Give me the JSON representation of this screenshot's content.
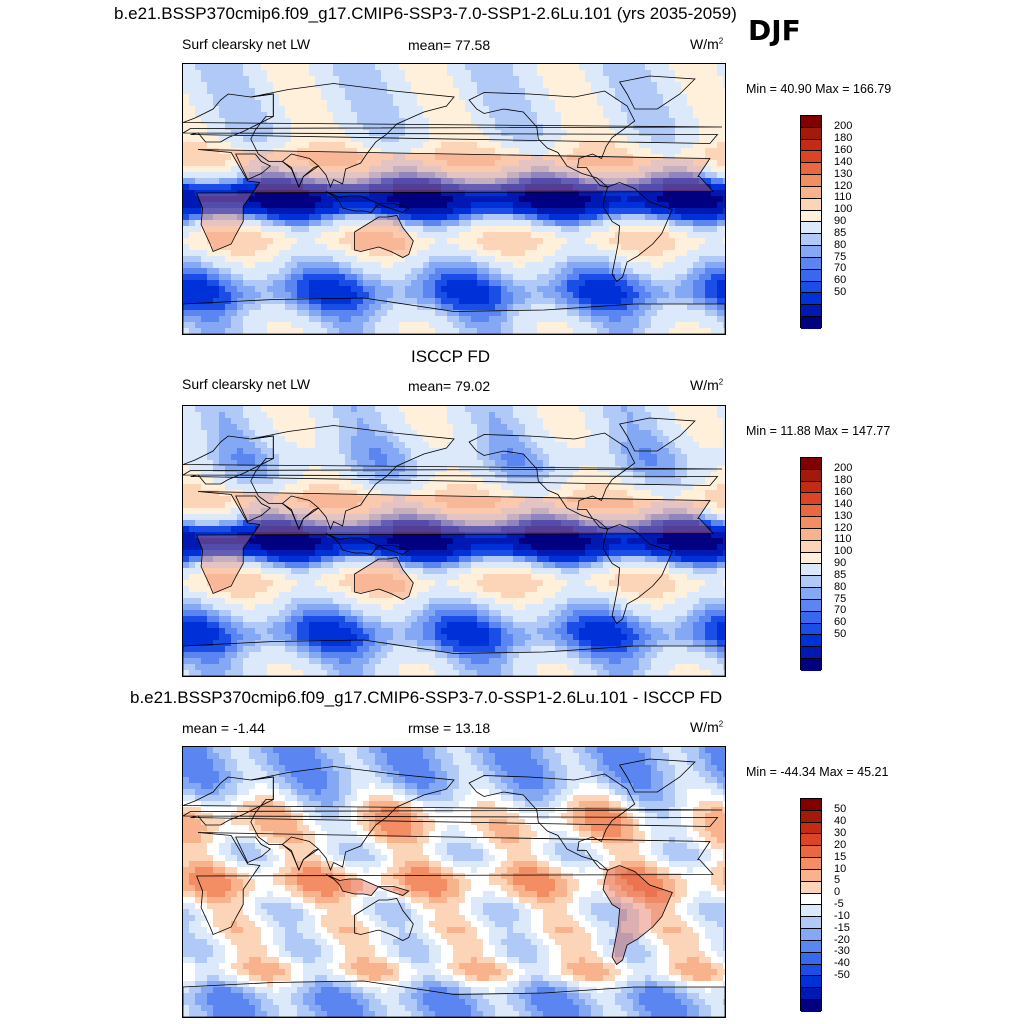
{
  "season": "DJF",
  "panels": [
    {
      "title": "b.e21.BSSP370cmip6.f09_g17.CMIP6-SSP3-7.0-SSP1-2.6Lu.101 (yrs 2035-2059)",
      "left_label": "Surf clearsky net LW",
      "center_label": "mean=  77.58",
      "units": "W/m",
      "units_sup": "2",
      "minmax": "Min =  40.90 Max = 166.79",
      "palette": [
        "#000080",
        "#0019b3",
        "#0030d8",
        "#1a4ee6",
        "#3868ee",
        "#5b86f2",
        "#85a8f5",
        "#b0c9f7",
        "#dce9fb",
        "#fff0dc",
        "#fcd4b8",
        "#f8b28c",
        "#f38d64",
        "#ea6840",
        "#dd4426",
        "#c42a14",
        "#a11a0c",
        "#800000"
      ],
      "levels": [
        "200",
        "180",
        "160",
        "140",
        "130",
        "120",
        "110",
        "100",
        "90",
        "85",
        "80",
        "75",
        "70",
        "60",
        "50"
      ],
      "map_kind": "model"
    },
    {
      "title": "ISCCP FD",
      "left_label": "Surf clearsky net LW",
      "center_label": "mean=  79.02",
      "units": "W/m",
      "units_sup": "2",
      "minmax": "Min =  11.88 Max = 147.77",
      "palette": [
        "#000080",
        "#0019b3",
        "#0030d8",
        "#1a4ee6",
        "#3868ee",
        "#5b86f2",
        "#85a8f5",
        "#b0c9f7",
        "#dce9fb",
        "#fff0dc",
        "#fcd4b8",
        "#f8b28c",
        "#f38d64",
        "#ea6840",
        "#dd4426",
        "#c42a14",
        "#a11a0c",
        "#800000"
      ],
      "levels": [
        "200",
        "180",
        "160",
        "140",
        "130",
        "120",
        "110",
        "100",
        "90",
        "85",
        "80",
        "75",
        "70",
        "60",
        "50"
      ],
      "map_kind": "obs"
    },
    {
      "title": "b.e21.BSSP370cmip6.f09_g17.CMIP6-SSP3-7.0-SSP1-2.6Lu.101 - ISCCP FD",
      "left_label": "mean =  -1.44",
      "center_label": "rmse =  13.18",
      "units": "W/m",
      "units_sup": "2",
      "minmax": "Min = -44.34 Max =  45.21",
      "palette": [
        "#000080",
        "#0019b3",
        "#0030d8",
        "#1a4ee6",
        "#3868ee",
        "#5b86f2",
        "#85a8f5",
        "#b0c9f7",
        "#dce9fb",
        "#ffffff",
        "#fcd4b8",
        "#f8b28c",
        "#f38d64",
        "#ea6840",
        "#dd4426",
        "#c42a14",
        "#a11a0c",
        "#800000"
      ],
      "levels": [
        "50",
        "40",
        "30",
        "20",
        "15",
        "10",
        "5",
        "0",
        "-5",
        "-10",
        "-15",
        "-20",
        "-30",
        "-40",
        "-50"
      ],
      "map_kind": "diff"
    }
  ]
}
